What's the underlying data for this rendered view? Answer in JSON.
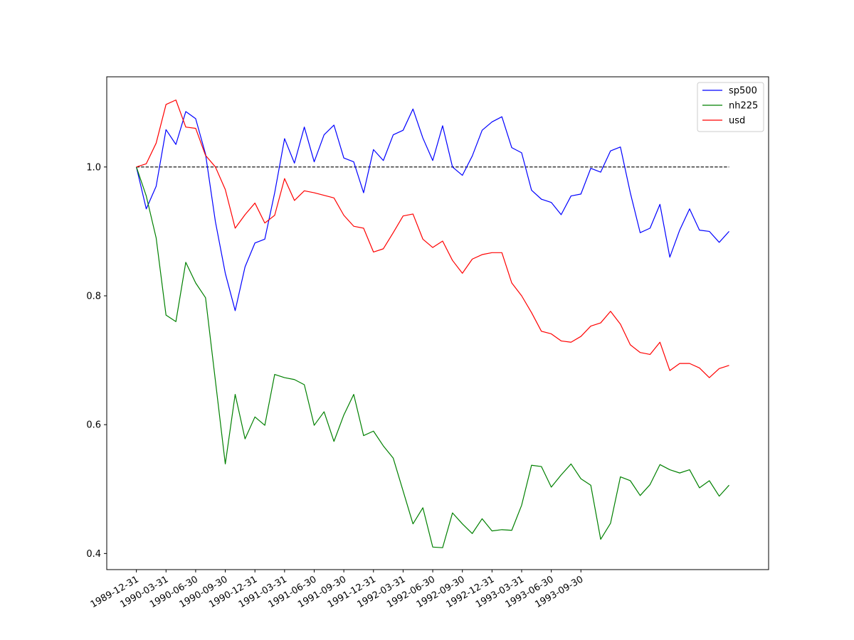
{
  "chart_data": {
    "type": "line",
    "title": "",
    "xlabel": "",
    "ylabel": "",
    "x_tick_labels": [
      "1989-12-31",
      "1990-03-31",
      "1990-06-30",
      "1990-09-30",
      "1990-12-31",
      "1991-03-31",
      "1991-06-30",
      "1991-09-30",
      "1991-12-31",
      "1992-03-31",
      "1992-06-30",
      "1992-09-30",
      "1992-12-31",
      "1993-03-31",
      "1993-06-30",
      "1993-09-30"
    ],
    "y_ticks": [
      0.4,
      0.6,
      0.8,
      1.0
    ],
    "y_tick_labels": [
      "0.4",
      "0.6",
      "0.8",
      "1.0"
    ],
    "ylim": [
      0.375,
      1.14
    ],
    "xlim": [
      -3,
      64
    ],
    "grid": false,
    "legend_position": "top-right",
    "reference_line": {
      "value": 1.0,
      "style": "dashed",
      "color": "#000000"
    },
    "series": [
      {
        "name": "sp500",
        "color": "#0000ff",
        "values": [
          1.0,
          0.935,
          0.97,
          1.058,
          1.035,
          1.086,
          1.075,
          1.02,
          0.915,
          0.835,
          0.777,
          0.845,
          0.882,
          0.888,
          0.96,
          1.044,
          1.006,
          1.062,
          1.008,
          1.05,
          1.065,
          1.014,
          1.008,
          0.96,
          1.027,
          1.01,
          1.05,
          1.057,
          1.09,
          1.045,
          1.01,
          1.064,
          1.0,
          0.987,
          1.017,
          1.057,
          1.07,
          1.078,
          1.03,
          1.022,
          0.964,
          0.95,
          0.945,
          0.926,
          0.955,
          0.958,
          0.998,
          0.992,
          1.025,
          1.031,
          0.96,
          0.898,
          0.905,
          0.942,
          0.86,
          0.902,
          0.935,
          0.902,
          0.9,
          0.883,
          0.9
        ]
      },
      {
        "name": "nh225",
        "color": "#008000",
        "values": [
          1.0,
          0.955,
          0.89,
          0.77,
          0.76,
          0.852,
          0.82,
          0.797,
          0.668,
          0.539,
          0.647,
          0.578,
          0.612,
          0.599,
          0.678,
          0.673,
          0.67,
          0.662,
          0.599,
          0.62,
          0.574,
          0.615,
          0.647,
          0.583,
          0.59,
          0.567,
          0.548,
          0.497,
          0.446,
          0.471,
          0.41,
          0.409,
          0.463,
          0.446,
          0.431,
          0.454,
          0.435,
          0.437,
          0.436,
          0.475,
          0.537,
          0.535,
          0.503,
          0.522,
          0.539,
          0.516,
          0.506,
          0.422,
          0.447,
          0.519,
          0.513,
          0.49,
          0.507,
          0.538,
          0.53,
          0.525,
          0.53,
          0.502,
          0.513,
          0.489,
          0.506
        ]
      },
      {
        "name": "usd",
        "color": "#ff0000",
        "values": [
          1.0,
          1.005,
          1.037,
          1.097,
          1.104,
          1.062,
          1.06,
          1.018,
          1.0,
          0.965,
          0.905,
          0.926,
          0.944,
          0.913,
          0.925,
          0.982,
          0.948,
          0.963,
          0.96,
          0.956,
          0.952,
          0.925,
          0.908,
          0.905,
          0.868,
          0.873,
          0.898,
          0.924,
          0.927,
          0.888,
          0.875,
          0.885,
          0.855,
          0.835,
          0.857,
          0.864,
          0.867,
          0.867,
          0.82,
          0.8,
          0.774,
          0.745,
          0.741,
          0.73,
          0.728,
          0.737,
          0.753,
          0.758,
          0.776,
          0.756,
          0.724,
          0.712,
          0.709,
          0.728,
          0.684,
          0.695,
          0.695,
          0.688,
          0.673,
          0.687,
          0.692
        ]
      }
    ]
  }
}
